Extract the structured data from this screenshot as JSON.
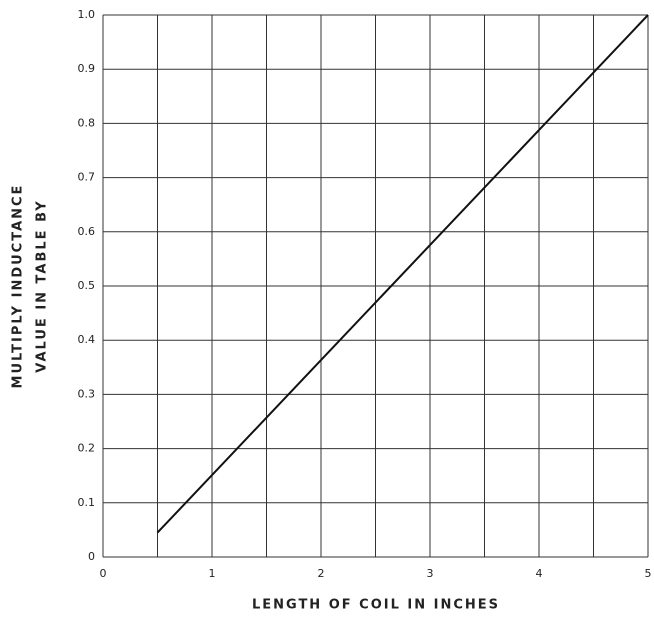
{
  "chart_data": {
    "type": "line",
    "xlabel": "LENGTH OF COIL IN INCHES",
    "ylabel": [
      "MULTIPLY INDUCTANCE",
      "VALUE IN TABLE BY"
    ],
    "x": [
      0.5,
      5
    ],
    "series": [
      {
        "color": "#111111",
        "values": [
          0.045,
          1.0
        ]
      }
    ],
    "xlim": [
      0,
      5
    ],
    "xticks": [
      0,
      1,
      2,
      3,
      4,
      5
    ],
    "xgrid": [
      0,
      0.5,
      1,
      1.5,
      2,
      2.5,
      3,
      3.5,
      4,
      4.5,
      5
    ],
    "ylim": [
      0,
      1
    ],
    "yticks": [
      0,
      0.1,
      0.2,
      0.3,
      0.4,
      0.5,
      0.6,
      0.7,
      0.8,
      0.9,
      {
        "value": 1,
        "label": "1.0"
      }
    ],
    "grid": true
  }
}
